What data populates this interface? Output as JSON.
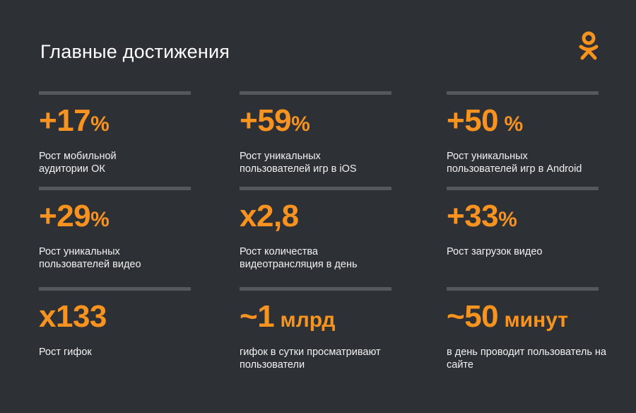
{
  "title": "Главные достижения",
  "logo": {
    "icon": "odnoklassniki-logo-icon",
    "color": "#f7931e"
  },
  "accent_color": "#f7931e",
  "stats": [
    {
      "value": "+17",
      "unit": "%",
      "description": "Рост мобильной аудитории ОК"
    },
    {
      "value": "+59",
      "unit": "%",
      "description": "Рост уникальных пользователей игр в iOS"
    },
    {
      "value": "+50",
      "unit": " %",
      "description": "Рост уникальных пользователей игр в Android"
    },
    {
      "value": "+29",
      "unit": "%",
      "description": "Рост уникальных пользователей видео"
    },
    {
      "value": "x2,8",
      "unit": "",
      "description": "Рост количества видеотрансляция в день"
    },
    {
      "value": "+33",
      "unit": "%",
      "description": "Рост загрузок видео"
    },
    {
      "value": "x133",
      "unit": "",
      "description": "Рост гифок"
    },
    {
      "value": "~1",
      "unit": " млрд",
      "description": "гифок в сутки просматривают пользователи"
    },
    {
      "value": "~50",
      "unit": " минут",
      "description": "в день проводит пользователь на сайте"
    }
  ]
}
